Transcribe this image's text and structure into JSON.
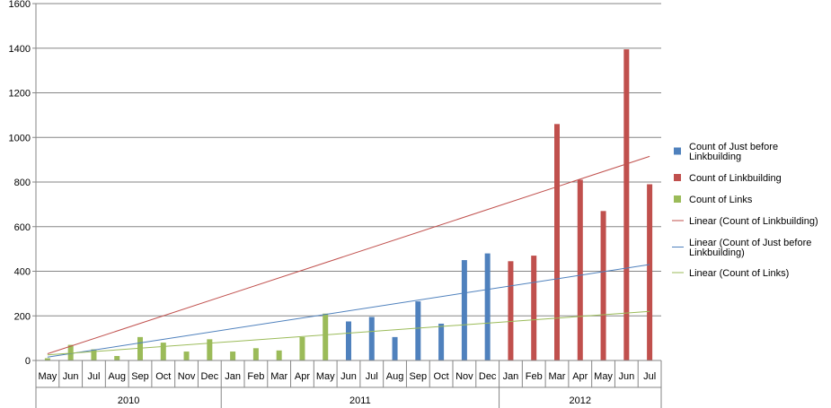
{
  "chart_data": {
    "type": "bar",
    "title": "",
    "xlabel": "",
    "ylabel": "",
    "ylim": [
      0,
      1600
    ],
    "yticks": [
      0,
      200,
      400,
      600,
      800,
      1000,
      1200,
      1400,
      1600
    ],
    "grid": true,
    "legend_position": "right",
    "categories": [
      "May",
      "Jun",
      "Jul",
      "Aug",
      "Sep",
      "Oct",
      "Nov",
      "Dec",
      "Jan",
      "Feb",
      "Mar",
      "Apr",
      "May",
      "Jun",
      "Jul",
      "Aug",
      "Sep",
      "Oct",
      "Nov",
      "Dec",
      "Jan",
      "Feb",
      "Mar",
      "Apr",
      "May",
      "Jun",
      "Jul"
    ],
    "years": [
      {
        "label": "2010",
        "start": 0,
        "end": 7
      },
      {
        "label": "2011",
        "start": 8,
        "end": 19
      },
      {
        "label": "2012",
        "start": 20,
        "end": 26
      }
    ],
    "series": [
      {
        "name": "Count of Just before Linkbuilding",
        "color": "#4f81bd",
        "values": [
          null,
          null,
          null,
          null,
          null,
          null,
          null,
          null,
          null,
          null,
          null,
          null,
          null,
          175,
          195,
          105,
          265,
          165,
          450,
          480,
          null,
          null,
          null,
          null,
          null,
          null,
          null
        ]
      },
      {
        "name": "Count of Linkbuilding",
        "color": "#c0504d",
        "values": [
          null,
          null,
          null,
          null,
          null,
          null,
          null,
          null,
          null,
          null,
          null,
          null,
          null,
          null,
          null,
          null,
          null,
          null,
          null,
          null,
          445,
          470,
          1060,
          810,
          670,
          1395,
          790
        ]
      },
      {
        "name": "Count of Links",
        "color": "#9bbb59",
        "values": [
          10,
          70,
          50,
          20,
          105,
          80,
          40,
          95,
          40,
          55,
          45,
          105,
          210,
          null,
          null,
          null,
          null,
          null,
          null,
          null,
          null,
          null,
          null,
          null,
          null,
          null,
          null
        ]
      }
    ],
    "trendlines": [
      {
        "name": "Linear (Count of Linkbuilding)",
        "color": "#c0504d",
        "start": 30,
        "end": 915
      },
      {
        "name": "Linear (Count of Just before Linkbuilding)",
        "color": "#4f81bd",
        "start": 15,
        "end": 430
      },
      {
        "name": "Linear (Count of Links)",
        "color": "#9bbb59",
        "start": 25,
        "end": 220
      }
    ]
  }
}
